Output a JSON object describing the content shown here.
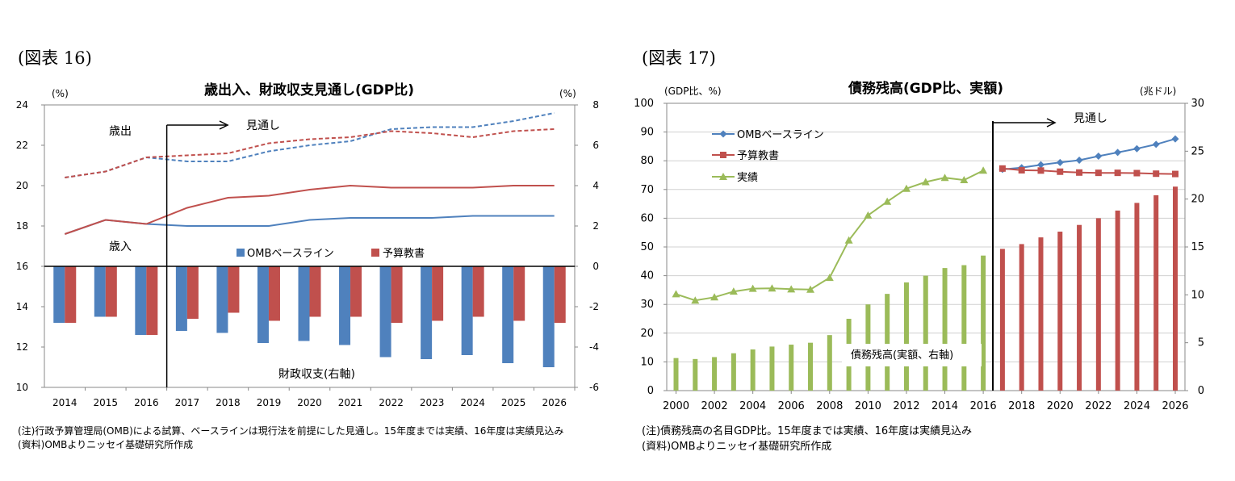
{
  "figure16": {
    "label": "(図表 16)",
    "note1": "(注)行政予算管理局(OMB)による試算、ベースラインは現行法を前提にした見通し。15年度までは実績、16年度は実績見込み",
    "note2": "(資料)OMBよりニッセイ基礎研究所作成"
  },
  "figure17": {
    "label": "(図表 17)",
    "note1": "(注)債務残高の名目GDP比。15年度までは実績、16年度は実績見込み",
    "note2": "(資料)OMBよりニッセイ基礎研究所作成"
  },
  "colors": {
    "blue": "#4F81BD",
    "red": "#C0504D",
    "green": "#9BBB59"
  },
  "chart_data": [
    {
      "type": "bar+line",
      "title": "歳出入、財政収支見通し(GDP比)",
      "ylabel_left": "(%)",
      "ylabel_right": "(%)",
      "ylim_left": [
        10,
        24
      ],
      "ylim_right": [
        -6,
        8
      ],
      "left_ticks": [
        "10",
        "12",
        "14",
        "16",
        "18",
        "20",
        "22",
        "24"
      ],
      "right_ticks": [
        "-6",
        "-4",
        "-2",
        "0",
        "2",
        "4",
        "6",
        "8"
      ],
      "categories": [
        "2014",
        "2015",
        "2016",
        "2017",
        "2018",
        "2019",
        "2020",
        "2021",
        "2022",
        "2023",
        "2024",
        "2025",
        "2026"
      ],
      "annotations": {
        "outlays": "歳出",
        "receipts": "歳入",
        "forecast": "見通し",
        "balance": "財政収支(右軸)"
      },
      "legend": [
        "OMBベースライン",
        "予算教書"
      ],
      "bars_right_axis": [
        {
          "name": "OMBベースライン",
          "values": [
            -2.8,
            -2.5,
            -3.4,
            -3.2,
            -3.3,
            -3.8,
            -3.7,
            -3.9,
            -4.5,
            -4.6,
            -4.4,
            -4.8,
            -5.0
          ]
        },
        {
          "name": "予算教書",
          "values": [
            -2.8,
            -2.5,
            -3.4,
            -2.6,
            -2.3,
            -2.7,
            -2.5,
            -2.5,
            -2.8,
            -2.7,
            -2.5,
            -2.7,
            -2.8
          ]
        }
      ],
      "outlays_left_axis": [
        {
          "name": "OMBベースライン",
          "values": [
            20.4,
            20.7,
            21.4,
            21.2,
            21.2,
            21.7,
            22.0,
            22.2,
            22.8,
            22.9,
            22.9,
            23.2,
            23.6
          ]
        },
        {
          "name": "予算教書",
          "values": [
            20.4,
            20.7,
            21.4,
            21.5,
            21.6,
            22.1,
            22.3,
            22.4,
            22.7,
            22.6,
            22.4,
            22.7,
            22.8
          ]
        }
      ],
      "receipts_left_axis": [
        {
          "name": "OMBベースライン",
          "values": [
            17.6,
            18.3,
            18.1,
            18.0,
            18.0,
            18.0,
            18.3,
            18.4,
            18.4,
            18.4,
            18.5,
            18.5,
            18.5
          ]
        },
        {
          "name": "予算教書",
          "values": [
            17.6,
            18.3,
            18.1,
            18.9,
            19.4,
            19.5,
            19.8,
            20.0,
            19.9,
            19.9,
            19.9,
            20.0,
            20.0
          ]
        }
      ]
    },
    {
      "type": "bar+line",
      "title": "債務残高(GDP比、実額)",
      "ylabel_left": "(GDP比、%)",
      "ylabel_right": "(兆ドル)",
      "ylim_left": [
        0,
        100
      ],
      "ylim_right": [
        0,
        30
      ],
      "left_ticks": [
        "0",
        "10",
        "20",
        "30",
        "40",
        "50",
        "60",
        "70",
        "80",
        "90",
        "100"
      ],
      "right_ticks": [
        "0",
        "5",
        "10",
        "15",
        "20",
        "25",
        "30"
      ],
      "x_ticks": [
        "2000",
        "2002",
        "2004",
        "2006",
        "2008",
        "2010",
        "2012",
        "2014",
        "2016",
        "2018",
        "2020",
        "2022",
        "2024",
        "2026"
      ],
      "annotations": {
        "forecast": "見通し",
        "debt_bars": "債務残高(実額、右軸)"
      },
      "legend": [
        "OMBベースライン",
        "予算教書",
        "実績"
      ],
      "years": [
        2000,
        2001,
        2002,
        2003,
        2004,
        2005,
        2006,
        2007,
        2008,
        2009,
        2010,
        2011,
        2012,
        2013,
        2014,
        2015,
        2016,
        2017,
        2018,
        2019,
        2020,
        2021,
        2022,
        2023,
        2024,
        2025,
        2026
      ],
      "debt_trillion_right_axis": [
        3.4,
        3.3,
        3.5,
        3.9,
        4.3,
        4.6,
        4.8,
        5.0,
        5.8,
        7.5,
        9.0,
        10.1,
        11.3,
        12.0,
        12.8,
        13.1,
        14.1,
        14.8,
        15.3,
        16.0,
        16.6,
        17.3,
        18.0,
        18.8,
        19.6,
        20.4,
        21.3
      ],
      "series": [
        {
          "name": "実績",
          "x": [
            2000,
            2001,
            2002,
            2003,
            2004,
            2005,
            2006,
            2007,
            2008,
            2009,
            2010,
            2011,
            2012,
            2013,
            2014,
            2015,
            2016
          ],
          "values": [
            33.6,
            31.4,
            32.5,
            34.5,
            35.5,
            35.6,
            35.3,
            35.2,
            39.3,
            52.3,
            61.0,
            65.8,
            70.3,
            72.6,
            74.1,
            73.3,
            76.6
          ]
        },
        {
          "name": "OMBベースライン",
          "x": [
            2017,
            2018,
            2019,
            2020,
            2021,
            2022,
            2023,
            2024,
            2025,
            2026
          ],
          "values": [
            77.0,
            77.6,
            78.6,
            79.4,
            80.2,
            81.6,
            82.9,
            84.2,
            85.7,
            87.6
          ]
        },
        {
          "name": "予算教書",
          "x": [
            2017,
            2018,
            2019,
            2020,
            2021,
            2022,
            2023,
            2024,
            2025,
            2026
          ],
          "values": [
            77.3,
            76.7,
            76.6,
            76.2,
            75.9,
            75.8,
            75.8,
            75.7,
            75.5,
            75.4
          ]
        }
      ]
    }
  ]
}
